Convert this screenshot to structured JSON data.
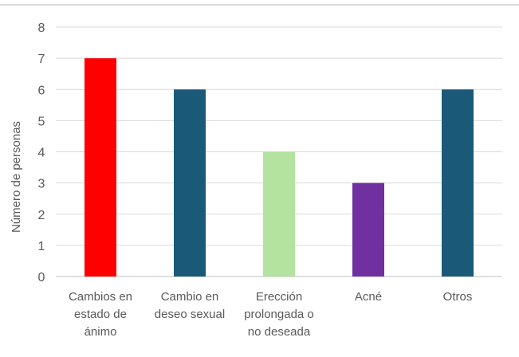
{
  "chart_data": {
    "type": "bar",
    "title": "",
    "xlabel": "",
    "ylabel": "Número de personas",
    "ylim": [
      0,
      8
    ],
    "y_ticks": [
      0,
      1,
      2,
      3,
      4,
      5,
      6,
      7,
      8
    ],
    "grid": true,
    "legend": "none",
    "categories": [
      [
        "Cambios en",
        "estado de",
        "ánimo"
      ],
      [
        "Cambio en",
        "deseo sexual"
      ],
      [
        "Erección",
        "prolongada o",
        "no deseada"
      ],
      [
        "Acné"
      ],
      [
        "Otros"
      ]
    ],
    "values": [
      7,
      6,
      4,
      3,
      6
    ],
    "colors": [
      "#ff0000",
      "#1a5a78",
      "#b3e39e",
      "#7030a0",
      "#1a5a78"
    ]
  }
}
